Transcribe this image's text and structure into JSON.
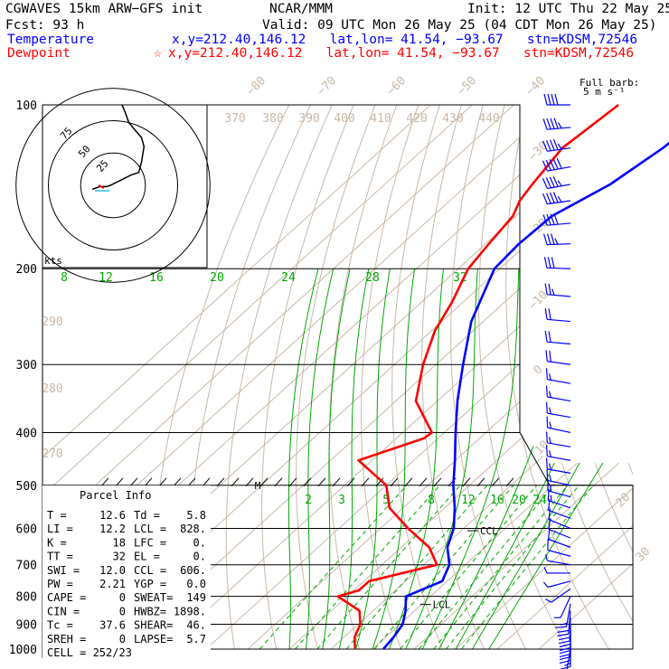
{
  "header": {
    "model": "CGWAVES 15km ARW−GFS init",
    "org": "NCAR/MMM",
    "init": "Init: 12 UTC Thu 22 May 25",
    "fcst": "Fcst:   93 h",
    "valid": "Valid: 09 UTC Mon 26 May 25 (04 CDT Mon 26 May 25)",
    "temp_label": "Temperature",
    "temp_info": "x,y=212.40,146.12   lat,lon= 41.54, −93.67   stn=KDSM,72546",
    "dew_label": "Dewpoint",
    "dew_star": "☆",
    "dew_info": "x,y=212.40,146.12   lat,lon= 41.54, −93.67   stn=KDSM,72546"
  },
  "barb_key": {
    "line1": "Full barb:",
    "line2": "5 m s⁻¹"
  },
  "hodograph": {
    "unit": "kts",
    "ring_labels": [
      "75",
      "50",
      "25"
    ]
  },
  "parcel_info": {
    "title": "Parcel Info",
    "rows": [
      [
        "T    =",
        "12.6",
        "Td =",
        "5.8"
      ],
      [
        "LI   =",
        "12.2",
        "LCL =",
        "828."
      ],
      [
        "K    =",
        "18",
        "LFC =",
        "0."
      ],
      [
        "TT   =",
        "32",
        "EL =",
        "0."
      ],
      [
        "SWI  =",
        "12.0",
        "CCL =",
        "606."
      ],
      [
        "PW   =",
        "2.21",
        "YGP =",
        "0.0"
      ],
      [
        "CAPE =",
        "0",
        "SWEAT=",
        "149"
      ],
      [
        "CIN  =",
        "0",
        "HWBZ=",
        "1898."
      ],
      [
        "Tc   =",
        "37.6",
        "SHEAR=",
        "46."
      ],
      [
        "SREH =",
        "0",
        "LAPSE=",
        "5.7"
      ]
    ],
    "cell": "CELL = 252/23"
  },
  "markers": {
    "ccl": "CCL",
    "lcl": "LCL",
    "m": "M"
  },
  "colors": {
    "temperature": "#0000ff",
    "dewpoint": "#ff0000",
    "isotherm": "#c8b8a8",
    "adiabat": "#c8b8a8",
    "moist_adiabat": "#00aa00",
    "mixing_ratio": "#00aa00",
    "isobar": "#000000",
    "barb": "#0000ff",
    "hodo_trace": "#000000"
  },
  "chart_data": {
    "type": "skew-t",
    "y_scale": "log-pressure",
    "pressure_levels": [
      100,
      200,
      300,
      400,
      500,
      600,
      700,
      800,
      900,
      1000
    ],
    "isotherm_labels": [
      "−80",
      "−70",
      "−60",
      "−50",
      "−40",
      "−30",
      "−20",
      "−10",
      "0",
      "10",
      "20",
      "30",
      "40"
    ],
    "theta_e_labels": [
      "370",
      "380",
      "390",
      "400",
      "410",
      "420",
      "430",
      "440"
    ],
    "theta_labels": [
      "290",
      "280",
      "270"
    ],
    "moist_adiabat_labels": [
      "8",
      "12",
      "16",
      "20",
      "24",
      "28",
      "32"
    ],
    "mixing_ratio_labels": [
      "2",
      "3",
      "5",
      "8",
      "12",
      "16",
      "20",
      "24"
    ],
    "series": [
      {
        "name": "Temperature",
        "points": [
          [
            100,
            -51.3
          ],
          [
            120,
            -52.7
          ],
          [
            140,
            -55.8
          ],
          [
            160,
            -61.4
          ],
          [
            180,
            -62.0
          ],
          [
            200,
            -61.3
          ],
          [
            250,
            -52.9
          ],
          [
            300,
            -43.5
          ],
          [
            350,
            -35.2
          ],
          [
            400,
            -27.3
          ],
          [
            450,
            -20.1
          ],
          [
            500,
            -13.9
          ],
          [
            550,
            -7.6
          ],
          [
            600,
            -2.4
          ],
          [
            650,
            1.1
          ],
          [
            700,
            6.2
          ],
          [
            750,
            8.8
          ],
          [
            800,
            4.1
          ],
          [
            850,
            7.8
          ],
          [
            900,
            10.7
          ],
          [
            950,
            11.9
          ],
          [
            1000,
            12.6
          ]
        ]
      },
      {
        "name": "Dewpoint",
        "points": [
          [
            100,
            -74.8
          ],
          [
            120,
            -76.9
          ],
          [
            140,
            -74.5
          ],
          [
            150,
            -73.2
          ],
          [
            160,
            -70.8
          ],
          [
            180,
            -69.2
          ],
          [
            200,
            -67.6
          ],
          [
            230,
            -62.7
          ],
          [
            260,
            -59.2
          ],
          [
            300,
            -53.1
          ],
          [
            350,
            -45.2
          ],
          [
            400,
            -33.0
          ],
          [
            410,
            -33.4
          ],
          [
            450,
            -43.3
          ],
          [
            500,
            -30.0
          ],
          [
            550,
            -23.3
          ],
          [
            600,
            -13.4
          ],
          [
            650,
            -3.3
          ],
          [
            700,
            3.2
          ],
          [
            750,
            -8.8
          ],
          [
            780,
            -8.8
          ],
          [
            800,
            -12.3
          ],
          [
            850,
            -3.3
          ],
          [
            900,
            0.5
          ],
          [
            950,
            2.5
          ],
          [
            1000,
            5.8
          ]
        ]
      }
    ],
    "markers": [
      {
        "name": "CCL",
        "pressure": 606
      },
      {
        "name": "LCL",
        "pressure": 828
      }
    ],
    "wind_barbs_ms": {
      "pressures": [
        100,
        110,
        120,
        130,
        140,
        150,
        165,
        180,
        200,
        225,
        250,
        275,
        300,
        325,
        350,
        375,
        400,
        425,
        450,
        475,
        500,
        525,
        550,
        575,
        600,
        625,
        650,
        675,
        700,
        725,
        750,
        775,
        800,
        825,
        850,
        875,
        900,
        925,
        950,
        975,
        1000
      ],
      "speed": [
        21,
        23,
        24,
        25,
        24,
        23,
        21,
        19,
        15,
        13,
        11,
        10,
        10,
        9,
        9,
        9,
        9,
        9,
        8,
        8,
        8,
        7,
        7,
        6,
        6,
        5,
        5,
        5,
        4,
        4,
        4,
        3,
        3,
        8,
        10,
        11,
        11,
        11,
        10,
        8,
        4
      ],
      "direction": [
        270,
        265,
        262,
        260,
        260,
        262,
        265,
        268,
        272,
        275,
        275,
        275,
        278,
        280,
        280,
        280,
        282,
        280,
        280,
        280,
        282,
        285,
        288,
        290,
        292,
        292,
        290,
        285,
        280,
        270,
        255,
        235,
        205,
        190,
        185,
        182,
        180,
        180,
        180,
        180,
        190
      ]
    },
    "hodograph": {
      "rings_kts": [
        25,
        50,
        75
      ],
      "trace_uv_kts": [
        [
          -16,
          -3
        ],
        [
          -10,
          -1
        ],
        [
          -5,
          -1
        ],
        [
          -2,
          0
        ],
        [
          6,
          4
        ],
        [
          14,
          8
        ],
        [
          20,
          10
        ],
        [
          22,
          18
        ],
        [
          24,
          30
        ],
        [
          22,
          37
        ],
        [
          16,
          44
        ],
        [
          12,
          49
        ],
        [
          10,
          55
        ],
        [
          8,
          60
        ],
        [
          6,
          64
        ]
      ]
    }
  }
}
